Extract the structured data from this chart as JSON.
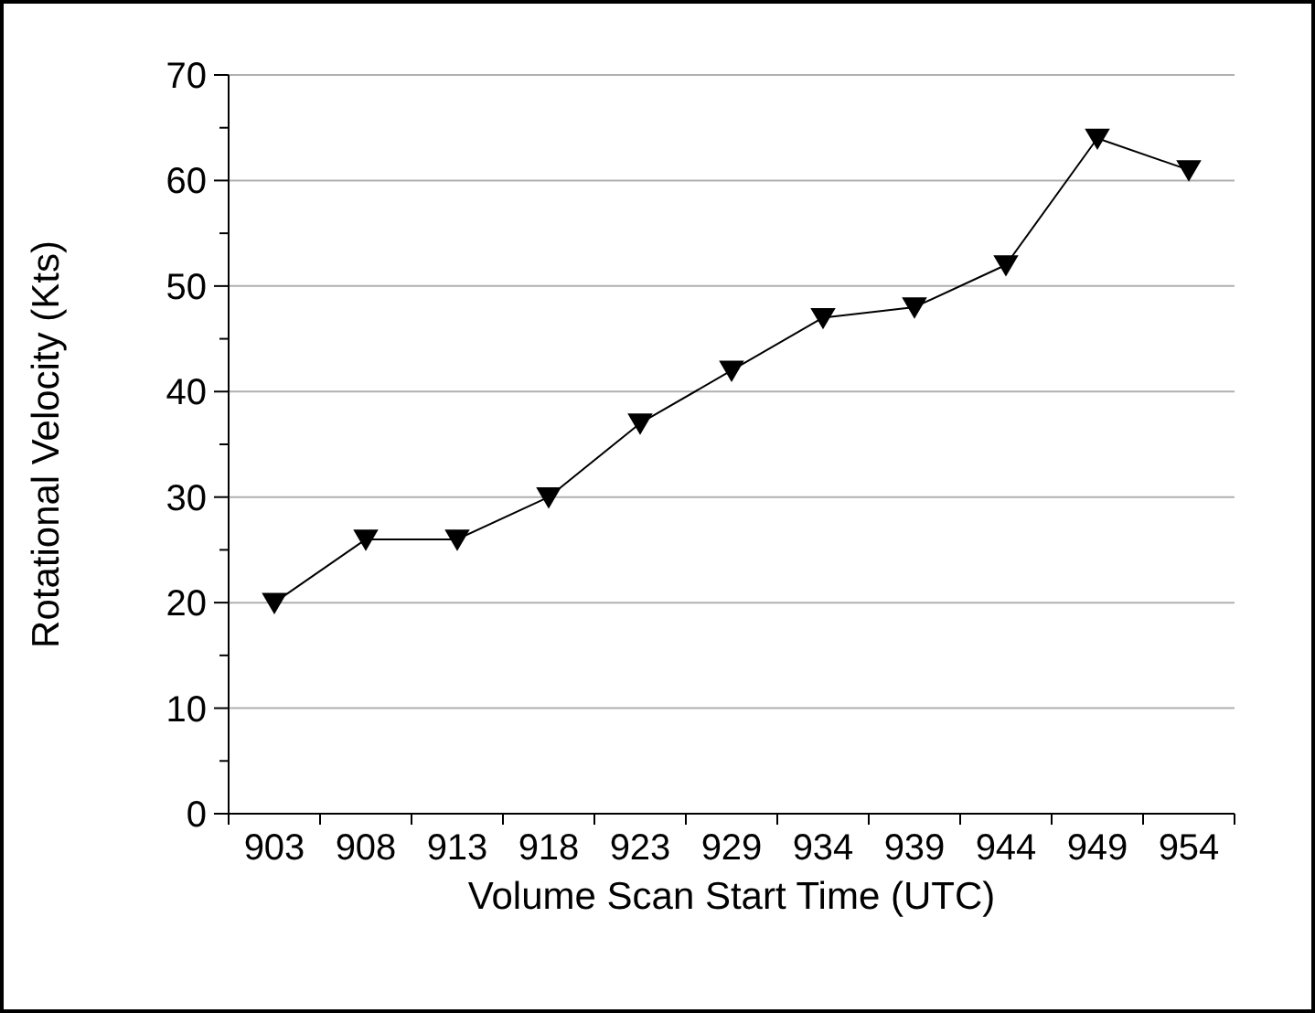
{
  "chart_data": {
    "type": "line",
    "xlabel": "Volume Scan Start Time (UTC)",
    "ylabel": "Rotational Velocity (Kts)",
    "categories": [
      "903",
      "908",
      "913",
      "918",
      "923",
      "929",
      "934",
      "939",
      "944",
      "949",
      "954"
    ],
    "series": [
      {
        "color": "#000000",
        "values": [
          20,
          26,
          26,
          30,
          37,
          42,
          47,
          48,
          52,
          64,
          61
        ]
      }
    ],
    "ylim": [
      0,
      70
    ],
    "yticks": [
      0,
      {
        "value": 5,
        "label": null
      },
      10,
      {
        "value": 15,
        "label": null
      },
      20,
      {
        "value": 25,
        "label": null
      },
      30,
      {
        "value": 35,
        "label": null
      },
      40,
      {
        "value": 45,
        "label": null
      },
      50,
      {
        "value": 55,
        "label": null
      },
      60,
      {
        "value": 65,
        "label": null
      },
      70
    ],
    "grid": "y",
    "marker": "triangle",
    "line_style": "solid"
  }
}
